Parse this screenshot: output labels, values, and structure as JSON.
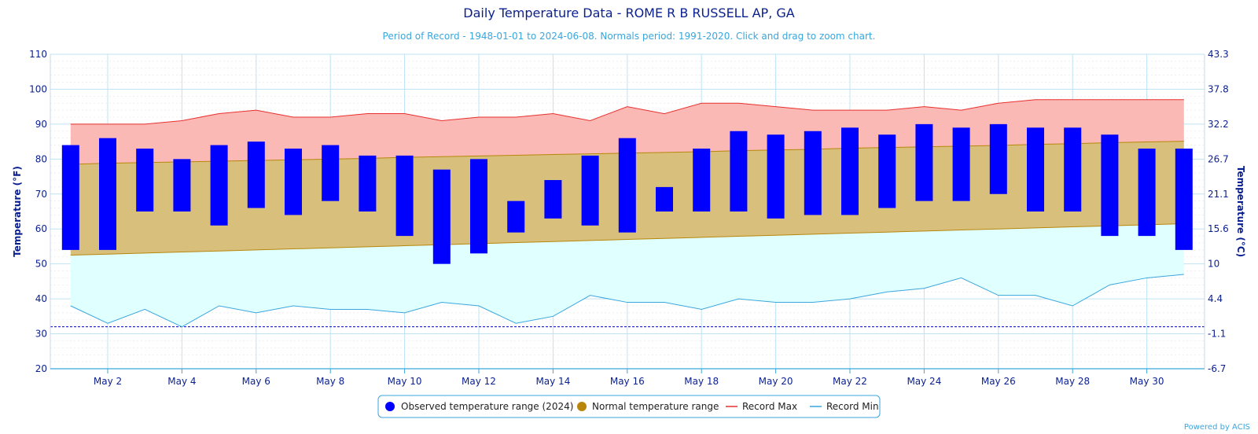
{
  "chart_data": {
    "type": "bar",
    "title": "Daily Temperature Data - ROME R B RUSSELL AP, GA",
    "subtitle": "Period of Record - 1948-01-01 to 2024-06-08. Normals period: 1991-2020. Click and drag to zoom chart.",
    "ylabel_left": "Temperature (°F)",
    "ylabel_right": "Temperature (°C)",
    "ylim": [
      20,
      110
    ],
    "yticks": [
      20,
      30,
      40,
      50,
      60,
      70,
      80,
      90,
      100,
      110
    ],
    "yticks_right": [
      "-6.7",
      "-1.1",
      "4.4",
      "10",
      "15.6",
      "21.1",
      "26.7",
      "32.2",
      "37.8",
      "43.3"
    ],
    "days": [
      1,
      2,
      3,
      4,
      5,
      6,
      7,
      8,
      9,
      10,
      11,
      12,
      13,
      14,
      15,
      16,
      17,
      18,
      19,
      20,
      21,
      22,
      23,
      24,
      25,
      26,
      27,
      28,
      29,
      30,
      31
    ],
    "xtick_labels": [
      "May 2",
      "May 4",
      "May 6",
      "May 8",
      "May 10",
      "May 12",
      "May 14",
      "May 16",
      "May 18",
      "May 20",
      "May 22",
      "May 24",
      "May 26",
      "May 28",
      "May 30"
    ],
    "xtick_days": [
      2,
      4,
      6,
      8,
      10,
      12,
      14,
      16,
      18,
      20,
      22,
      24,
      26,
      28,
      30
    ],
    "freezing_line": 32,
    "series": [
      {
        "name": "Observed temperature range (2024)",
        "color": "#0000ff",
        "low": [
          54,
          54,
          65,
          65,
          61,
          66,
          64,
          68,
          65,
          58,
          50,
          53,
          59,
          63,
          61,
          59,
          65,
          65,
          65,
          63,
          64,
          64,
          66,
          68,
          68,
          70,
          65,
          65,
          58,
          58,
          54
        ],
        "high": [
          84,
          86,
          83,
          80,
          84,
          85,
          83,
          84,
          81,
          81,
          77,
          80,
          68,
          74,
          81,
          86,
          72,
          83,
          88,
          87,
          88,
          89,
          87,
          90,
          89,
          90,
          89,
          89,
          87,
          83,
          83
        ]
      },
      {
        "name": "Normal temperature range",
        "color": "#b8860b",
        "low": [
          52.5,
          52.8,
          53.1,
          53.4,
          53.7,
          54.0,
          54.3,
          54.6,
          54.9,
          55.2,
          55.5,
          55.8,
          56.1,
          56.4,
          56.7,
          57.0,
          57.3,
          57.6,
          57.9,
          58.2,
          58.5,
          58.8,
          59.1,
          59.4,
          59.7,
          60.0,
          60.3,
          60.6,
          60.9,
          61.2,
          61.5
        ],
        "high": [
          78.5,
          78.8,
          79.0,
          79.2,
          79.4,
          79.6,
          79.8,
          80.0,
          80.2,
          80.5,
          80.7,
          80.9,
          81.1,
          81.3,
          81.5,
          81.7,
          81.9,
          82.1,
          82.4,
          82.6,
          82.8,
          83.1,
          83.3,
          83.5,
          83.7,
          83.9,
          84.2,
          84.4,
          84.7,
          84.9,
          85.1
        ]
      },
      {
        "name": "Record Max",
        "color": "#e8302e",
        "values": [
          90,
          90,
          90,
          91,
          93,
          94,
          92,
          92,
          93,
          93,
          91,
          92,
          92,
          93,
          91,
          95,
          93,
          96,
          96,
          95,
          94,
          94,
          94,
          95,
          94,
          96,
          97,
          97,
          97,
          97,
          97
        ]
      },
      {
        "name": "Record Min",
        "color": "#3aa6dd",
        "values": [
          38,
          33,
          37,
          32,
          38,
          36,
          38,
          37,
          37,
          36,
          39,
          38,
          33,
          35,
          41,
          39,
          39,
          37,
          40,
          39,
          39,
          40,
          42,
          43,
          46,
          41,
          41,
          38,
          44,
          46,
          47
        ]
      }
    ],
    "legend_position": "bottom-center",
    "grid": true
  },
  "credit": "Powered by ACIS"
}
